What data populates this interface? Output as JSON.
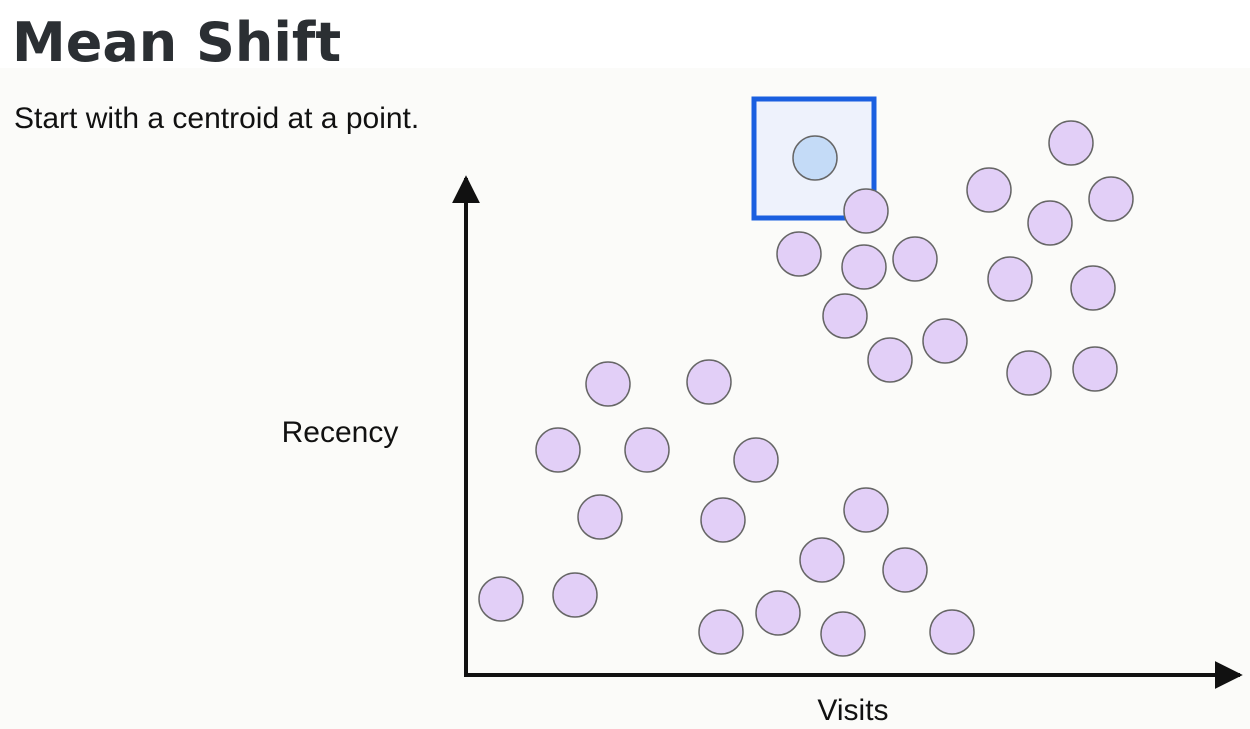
{
  "header": {
    "title": "Mean Shift"
  },
  "slide": {
    "caption": "Start with a centroid at a point.",
    "y_axis_label": "Recency",
    "x_axis_label": "Visits"
  }
}
